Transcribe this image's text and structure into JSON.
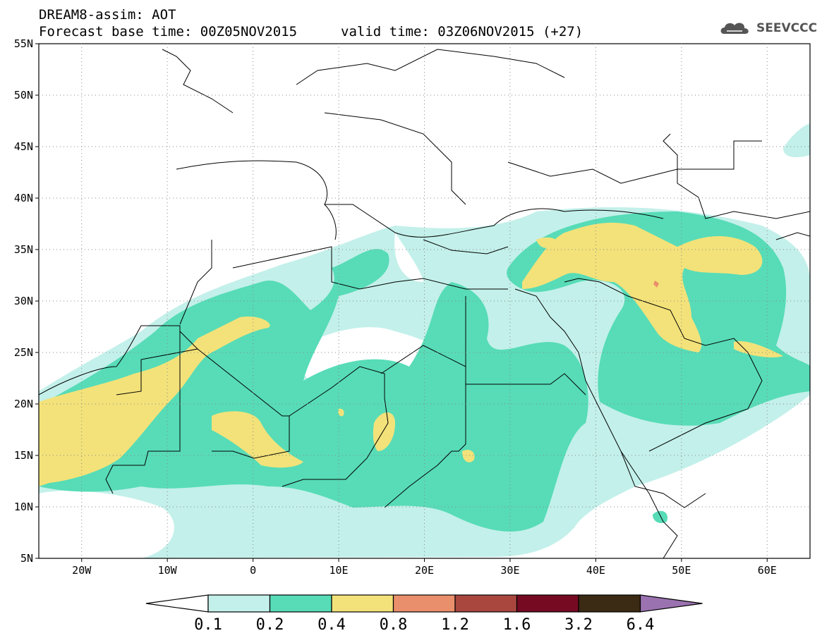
{
  "header": {
    "product": "DREAM8-assim: AOT",
    "base_time": "Forecast base time: 00Z05NOV2015",
    "valid_time": "valid time: 03Z06NOV2015 (+27)"
  },
  "logo": {
    "text": "SEEVCCC"
  },
  "map": {
    "lat_labels": [
      "55N",
      "50N",
      "45N",
      "40N",
      "35N",
      "30N",
      "25N",
      "20N",
      "15N",
      "10N",
      "5N"
    ],
    "lon_labels": [
      "20W",
      "10W",
      "0",
      "10E",
      "20E",
      "30E",
      "40E",
      "50E",
      "60E"
    ],
    "lat_range": [
      5,
      55
    ],
    "lon_range": [
      -25,
      65
    ]
  },
  "colorbar": {
    "thresholds": [
      "0.1",
      "0.2",
      "0.4",
      "0.8",
      "1.2",
      "1.6",
      "3.2",
      "6.4"
    ],
    "colors": [
      "#c3f0ea",
      "#57dcb7",
      "#f3e27a",
      "#e98f6b",
      "#a9473f",
      "#760a22",
      "#3b2a14",
      "#9b72b0"
    ]
  }
}
